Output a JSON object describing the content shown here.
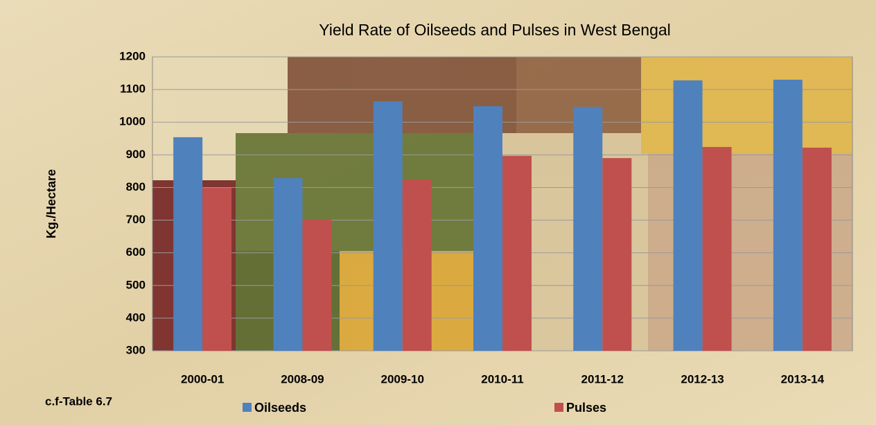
{
  "chart_data": {
    "type": "bar",
    "title": "Yield Rate of Oilseeds and Pulses in West Bengal",
    "y_label": "Kg./Hectare",
    "note": "c.f-Table 6.7",
    "categories": [
      "2000-01",
      "2008-09",
      "2009-10",
      "2010-11",
      "2011-12",
      "2012-13",
      "2013-14"
    ],
    "series": [
      {
        "name": "Oilseeds",
        "color": "#4f81bd",
        "values": [
          954,
          829,
          1064,
          1049,
          1047,
          1128,
          1130
        ]
      },
      {
        "name": "Pulses",
        "color": "#c0504d",
        "values": [
          799,
          701,
          824,
          897,
          890,
          924,
          922
        ]
      }
    ],
    "ylim": [
      300,
      1200
    ],
    "yticks": [
      300,
      400,
      500,
      600,
      700,
      800,
      900,
      1000,
      1100,
      1200
    ],
    "grid": true
  }
}
